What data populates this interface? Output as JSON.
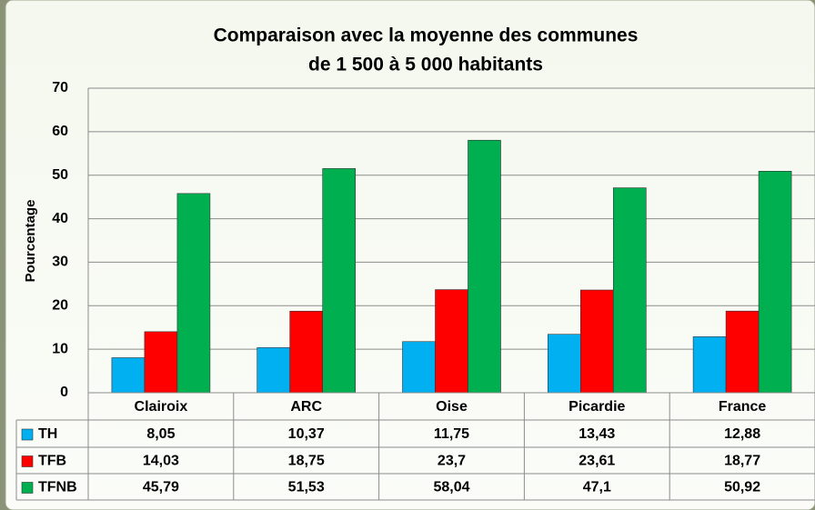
{
  "chart_data": {
    "type": "bar",
    "title": [
      "Comparaison avec la moyenne des communes",
      "de 1 500 à 5 000 habitants"
    ],
    "y_label": "Pourcentage",
    "categories": [
      "Clairoix",
      "ARC",
      "Oise",
      "Picardie",
      "France"
    ],
    "series": [
      {
        "name": "TH",
        "color": "#00b0f0",
        "values": [
          8.05,
          10.37,
          11.75,
          13.43,
          12.88
        ],
        "value_labels": [
          "8,05",
          "10,37",
          "11,75",
          "13,43",
          "12,88"
        ]
      },
      {
        "name": "TFB",
        "color": "#ff0000",
        "values": [
          14.03,
          18.75,
          23.7,
          23.61,
          18.77
        ],
        "value_labels": [
          "14,03",
          "18,75",
          "23,7",
          "23,61",
          "18,77"
        ]
      },
      {
        "name": "TFNB",
        "color": "#00b050",
        "values": [
          45.79,
          51.53,
          58.04,
          47.1,
          50.92
        ],
        "value_labels": [
          "45,79",
          "51,53",
          "58,04",
          "47,1",
          "50,92"
        ]
      }
    ],
    "ylim": [
      0,
      70
    ],
    "yticks": [
      0,
      10,
      20,
      30,
      40,
      50,
      60,
      70
    ],
    "grid": true
  }
}
